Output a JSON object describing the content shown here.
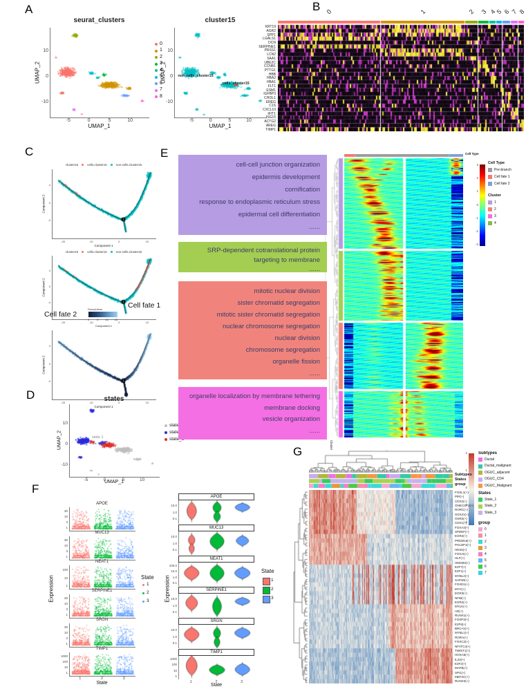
{
  "colors": {
    "gg9": [
      "#F8766D",
      "#D39200",
      "#93AA00",
      "#00BA38",
      "#00C19F",
      "#00B9E3",
      "#619CFF",
      "#DB72FB",
      "#FF61C3"
    ],
    "teal": "#00BFC4",
    "red": "#F8766D",
    "dark_red_cells": "#C65B53"
  },
  "panel_a": {
    "letter": "A",
    "plot1": {
      "title": "seurat_clusters",
      "xlabel": "UMAP_1",
      "ylabel": "UMAP_2",
      "xticks": [
        "-5",
        "0",
        "5",
        "10"
      ],
      "yticks": [
        "10",
        "0",
        "-10"
      ]
    },
    "legend": {
      "items": [
        {
          "label": "0",
          "color": "#F8766D"
        },
        {
          "label": "1",
          "color": "#D39200"
        },
        {
          "label": "2",
          "color": "#93AA00"
        },
        {
          "label": "3",
          "color": "#00BA38"
        },
        {
          "label": "4",
          "color": "#00C19F"
        },
        {
          "label": "5",
          "color": "#00B9E3"
        },
        {
          "label": "6",
          "color": "#619CFF"
        },
        {
          "label": "7",
          "color": "#DB72FB"
        },
        {
          "label": "8",
          "color": "#FF61C3"
        }
      ]
    },
    "plot2": {
      "title": "cluster15",
      "xlabel": "UMAP_1",
      "ylabel": "UMAP_2",
      "xticks": [
        "-5",
        "0",
        "5",
        "10"
      ],
      "yticks": [
        "10",
        "0",
        "-10"
      ],
      "annotations": [
        "non-cells_cluster15",
        "cells_cluster15"
      ]
    }
  },
  "panel_b": {
    "letter": "B",
    "cluster_labels": [
      "0",
      "1",
      "2",
      "3",
      "4",
      "5",
      "6",
      "7",
      "8"
    ],
    "genes": [
      "KRT19",
      "AGR2",
      "SPP1",
      "LGALS1",
      "DCN",
      "SERPINE1",
      "PRSS1",
      "LCN2",
      "SAA1",
      "UBE2C",
      "CCNB1",
      "PTTG1",
      "HBB",
      "HBA2",
      "HBA1",
      "FLT1",
      "ESM1",
      "IGFBP3",
      "CHI3L1",
      "EREG",
      "C1S",
      "CXCL10",
      "IFIT1",
      "ISG15",
      "ACTG2",
      "AREG",
      "TIMP1"
    ]
  },
  "panel_c": {
    "letter": "C",
    "legend": {
      "title": "cluster15",
      "items": [
        {
          "label": "cells.cluster15",
          "color": "#F8766D"
        },
        {
          "label": "non-cells.cluster15",
          "color": "#00BFC4"
        }
      ]
    },
    "xlabel": "Component 1",
    "ylabel": "Component 2",
    "xticks": [
      "-20",
      "-10",
      "0",
      "10"
    ],
    "yticks": [
      "4",
      "0",
      "-4"
    ],
    "branch_label": "1",
    "cell_fate_1": "Cell fate 1",
    "cell_fate_2": "Cell fate 2",
    "pseudotime": {
      "label": "Pseudotime",
      "ticks": [
        "0",
        "5",
        "10",
        "15"
      ]
    }
  },
  "panel_d": {
    "letter": "D",
    "title": "states",
    "xlabel": "UMAP_1",
    "ylabel": "UMAP_2",
    "xticks": [
      "-5",
      "0",
      "5",
      "10"
    ],
    "yticks": [
      "10",
      "0",
      "-10"
    ],
    "legend": [
      {
        "label": "state_1",
        "color": "#BEBEBE"
      },
      {
        "label": "state_2",
        "color": "#2B2BDB"
      },
      {
        "label": "state_3",
        "color": "#DE2D26"
      }
    ],
    "inplot_label": "state 1"
  },
  "panel_e": {
    "letter": "E",
    "go_boxes": [
      {
        "color": "#B69CE3",
        "terms": [
          "cell-cell junction organization",
          "epidermis development",
          "cornification",
          "response to endoplasmic reticulum stress",
          "epidermal cell differentiation",
          "......"
        ]
      },
      {
        "color": "#A3CE52",
        "terms": [
          "SRP-dependent cotranslational protein targeting to membrane",
          "......"
        ]
      },
      {
        "color": "#F0847C",
        "terms": [
          "mitotic nuclear division",
          "sister chromatid segregation",
          "mitotic sister chromatid segregation",
          "nuclear chromosome segregation",
          "nuclear division",
          "chromosome segregation",
          "organelle fission",
          "......"
        ]
      },
      {
        "color": "#F46FE3",
        "terms": [
          "organelle localization by membrane tethering",
          "membrane docking",
          "vesicle organization",
          "......"
        ]
      }
    ],
    "top_label": "Cell Type",
    "legend_celltype": {
      "title": "Cell Type",
      "items": [
        {
          "label": "Pre-branch",
          "color": "#9C9C9C"
        },
        {
          "label": "Cell fate 1",
          "color": "#F8766D"
        },
        {
          "label": "Cell fate 2",
          "color": "#7F9FD8"
        }
      ]
    },
    "legend_cluster": {
      "title": "Cluster",
      "items": [
        {
          "label": "1",
          "color": "#B69CE3"
        },
        {
          "label": "2",
          "color": "#F0847C"
        },
        {
          "label": "3",
          "color": "#F46FE3"
        },
        {
          "label": "4",
          "color": "#7CC243"
        }
      ]
    },
    "colorbar_ticks": [
      "3",
      "2",
      "1",
      "0",
      "-1",
      "-2",
      "-3"
    ],
    "row_axis_label": "Cluster"
  },
  "panel_f": {
    "letter": "F",
    "xlabel": "State",
    "ylabel": "Expression",
    "xticks": [
      "1",
      "2",
      "3"
    ],
    "legend": {
      "title": "State",
      "items": [
        {
          "label": "1",
          "color": "#F8766D"
        },
        {
          "label": "2",
          "color": "#00BA38"
        },
        {
          "label": "3",
          "color": "#619CFF"
        }
      ]
    },
    "scatter_facets": [
      {
        "gene": "APOE",
        "yticks": [
          "30",
          "10",
          "3",
          "1"
        ]
      },
      {
        "gene": "MUC13",
        "yticks": [
          "30",
          "10",
          "3",
          "1"
        ]
      },
      {
        "gene": "NEAT1",
        "yticks": [
          "100",
          "10",
          "1"
        ]
      },
      {
        "gene": "SERPINE1",
        "yticks": [
          "30",
          "10",
          "3",
          "1"
        ]
      },
      {
        "gene": "SRGN",
        "yticks": [
          "30",
          "10",
          "3",
          "1"
        ]
      },
      {
        "gene": "TIMP1",
        "yticks": [
          "1000",
          "100",
          "10",
          "1"
        ]
      }
    ],
    "violin_facets": [
      {
        "gene": "APOE",
        "yticks": [
          "10.0",
          "1.0",
          "0.1"
        ]
      },
      {
        "gene": "MUC13",
        "yticks": [
          "10.0",
          "1.0",
          "0.1"
        ]
      },
      {
        "gene": "NEAT1",
        "yticks": [
          "100.0",
          "10.0",
          "1.0",
          "0.1"
        ]
      },
      {
        "gene": "SERPINE1",
        "yticks": [
          "10.0",
          "1.0",
          "0.1"
        ]
      },
      {
        "gene": "SRGN",
        "yticks": [
          "10.0",
          "1.0",
          "0.1"
        ]
      },
      {
        "gene": "TIMP1",
        "yticks": [
          "1000",
          "100",
          "10",
          "1"
        ]
      }
    ]
  },
  "panel_g": {
    "letter": "G",
    "ann_labels": [
      "Subtypes",
      "States",
      "group"
    ],
    "row_labels": [
      "FOSL1(+)",
      "PIR(+)",
      "CDX2(+)",
      "ONECUT2(+)",
      "RORC(+)",
      "SOX21(+)",
      "OSR2(+)",
      "CDX1(+)",
      "FOXA3(+)",
      "SPDEF(+)",
      "EGR2(+)",
      "PRDM16(+)",
      "POU2F3(+)",
      "HES6(+)",
      "FOXJ1(+)",
      "HLF(+)",
      "HMGB2(+)",
      "E2F7(+)",
      "E2F1(+)",
      "MYBL2(+)",
      "SAP30(+)",
      "FOXD1(+)",
      "MYC(+)",
      "EGR3(+)",
      "NFIB(+)",
      "EGR4(+)",
      "MYLK(+)",
      "AR(+)",
      "RUNX1(+)",
      "FOXP3(+)",
      "E2F8(+)",
      "BRCA1(+)",
      "MYBL1(+)",
      "RORA(+)",
      "FOXC2(+)",
      "NFATC4(+)",
      "TWIST1(+)",
      "HOXA5(+)",
      "IL24(+)",
      "E2F2(+)",
      "MAFB(+)",
      "SPI1(+)",
      "MEF2C(+)",
      "RUNX3(+)"
    ],
    "colorbar_ticks": [
      "2",
      "1",
      "0",
      "-1",
      "-2"
    ],
    "legend_subtypes": {
      "title": "Subtypes",
      "items": [
        {
          "label": "Ductal",
          "color": "#F06EE8"
        },
        {
          "label": "Ductal_malignant",
          "color": "#35C9A8"
        },
        {
          "label": "OGUC_adjacent",
          "color": "#B3B53E"
        },
        {
          "label": "OGUC_CD4",
          "color": "#CBA9F2"
        },
        {
          "label": "OGUC_Malignant",
          "color": "#F79646"
        }
      ]
    },
    "legend_states": {
      "title": "States",
      "items": [
        {
          "label": "State_1",
          "color": "#37CB5C"
        },
        {
          "label": "State_2",
          "color": "#A8D34C"
        },
        {
          "label": "State_3",
          "color": "#C4B3EE"
        }
      ]
    },
    "legend_group": {
      "title": "group",
      "items": [
        {
          "label": "0",
          "color": "#F7A6CE"
        },
        {
          "label": "1",
          "color": "#F58EA8"
        },
        {
          "label": "2",
          "color": "#3ED8D8"
        },
        {
          "label": "3",
          "color": "#E09A40"
        },
        {
          "label": "4",
          "color": "#F77FBE"
        },
        {
          "label": "5",
          "color": "#64B8F0"
        },
        {
          "label": "6",
          "color": "#4CC94C"
        },
        {
          "label": "7",
          "color": "#38D3E8"
        }
      ]
    }
  },
  "chart_data": [
    {
      "type": "scatter",
      "panel": "A",
      "title": "seurat_clusters",
      "xlabel": "UMAP_1",
      "ylabel": "UMAP_2",
      "xlim": [
        -9.5,
        14.5
      ],
      "ylim": [
        -16,
        19
      ],
      "clusters": [
        {
          "id": "0",
          "color": "#F8766D",
          "center": [
            -5.5,
            1.8
          ],
          "n": 460
        },
        {
          "id": "1",
          "color": "#D39200",
          "center": [
            4.8,
            -3.2
          ],
          "n": 420
        },
        {
          "id": "2",
          "color": "#93AA00",
          "center": [
            -3.6,
            16.2
          ],
          "n": 60
        },
        {
          "id": "3",
          "color": "#00BA38",
          "center": [
            3.4,
            0.8
          ],
          "n": 30
        },
        {
          "id": "4",
          "color": "#00C19F",
          "center": [
            1.8,
            -0.3
          ],
          "n": 25
        },
        {
          "id": "5",
          "color": "#00B9E3",
          "center": [
            0.3,
            1.5
          ],
          "n": 30
        },
        {
          "id": "6",
          "color": "#619CFF",
          "center": [
            8.6,
            -7.3
          ],
          "n": 45
        },
        {
          "id": "7",
          "color": "#DB72FB",
          "center": [
            -3.9,
            -12.7
          ],
          "n": 14
        },
        {
          "id": "8",
          "color": "#FF61C3",
          "center": [
            12.6,
            -9.3
          ],
          "n": 12
        }
      ]
    },
    {
      "type": "scatter",
      "panel": "A",
      "title": "cluster15",
      "groups": [
        {
          "label": "non-cells_cluster15",
          "color": "#00BFC4"
        },
        {
          "label": "cells_cluster15",
          "color": "#C65B53",
          "center": [
            6.3,
            -3.2
          ]
        }
      ]
    },
    {
      "type": "heatmap",
      "panel": "B",
      "palette": "purple-black-yellow",
      "columns": "cells grouped by cluster",
      "cluster_labels": [
        "0",
        "1",
        "2",
        "3",
        "4",
        "5",
        "6",
        "7",
        "8"
      ],
      "cluster_width_fracs": [
        0.42,
        0.345,
        0.05,
        0.042,
        0.026,
        0.022,
        0.03,
        0.028,
        0.027
      ],
      "rows": [
        "KRT19",
        "AGR2",
        "SPP1",
        "LGALS1",
        "DCN",
        "SERPINE1",
        "PRSS1",
        "LCN2",
        "SAA1",
        "UBE2C",
        "CCNB1",
        "PTTG1",
        "HBB",
        "HBA2",
        "HBA1",
        "FLT1",
        "ESM1",
        "IGFBP3",
        "CHI3L1",
        "EREG",
        "C1S",
        "CXCL10",
        "IFIT1",
        "ISG15",
        "ACTG2",
        "AREG",
        "TIMP1"
      ],
      "marker_cluster_of_row": [
        [
          0,
          1
        ],
        [
          1
        ],
        [
          0,
          1
        ],
        [
          0
        ],
        [
          2
        ],
        [
          0
        ],
        [
          1
        ],
        [
          1
        ],
        [
          2
        ],
        [
          3
        ],
        [
          3
        ],
        [
          3
        ],
        [
          4
        ],
        [
          4
        ],
        [
          4
        ],
        [
          5
        ],
        [
          5
        ],
        [
          6
        ],
        [
          6
        ],
        [
          6
        ],
        [
          6
        ],
        [
          7
        ],
        [
          7
        ],
        [
          7
        ],
        [
          8
        ],
        [
          8
        ],
        [
          0,
          1,
          2
        ]
      ]
    },
    {
      "type": "scatter",
      "panel": "C",
      "subtype": "trajectory",
      "xlabel": "Component 1",
      "ylabel": "Component 2",
      "plots": [
        {
          "color_by": "cluster15",
          "branch_point": "1"
        },
        {
          "color_by": "cluster15",
          "annotation": "Cell fate 1"
        },
        {
          "color_by": "Pseudotime",
          "scale_ticks": [
            0,
            5,
            10,
            15
          ],
          "annotation": "Cell fate 2"
        }
      ]
    },
    {
      "type": "scatter",
      "panel": "D",
      "title": "states",
      "states": [
        {
          "label": "state_1",
          "color": "#BEBEBE",
          "region": "right"
        },
        {
          "label": "state_2",
          "color": "#2B2BDB",
          "region": "left"
        },
        {
          "label": "state_3",
          "color": "#DE2D26",
          "region": "center"
        }
      ]
    },
    {
      "type": "heatmap",
      "panel": "E",
      "palette": "jet",
      "zlim": [
        -3,
        3
      ],
      "col_split": [
        "Cell fate 1 branch",
        "Cell fate 2 branch"
      ],
      "row_blocks": [
        {
          "cluster": "1",
          "color": "#B69CE3",
          "go_terms": [
            "cell-cell junction organization",
            "epidermis development",
            "cornification",
            "response to endoplasmic reticulum stress",
            "epidermal cell differentiation"
          ]
        },
        {
          "cluster": "4",
          "color": "#7CC243",
          "go_terms": [
            "SRP-dependent cotranslational protein targeting to membrane"
          ]
        },
        {
          "cluster": "2",
          "color": "#F0847C",
          "go_terms": [
            "mitotic nuclear division",
            "sister chromatid segregation",
            "mitotic sister chromatid segregation",
            "nuclear chromosome segregation",
            "nuclear division",
            "chromosome segregation",
            "organelle fission"
          ]
        },
        {
          "cluster": "3",
          "color": "#F46FE3",
          "go_terms": [
            "organelle localization by membrane tethering",
            "membrane docking",
            "vesicle organization"
          ]
        }
      ]
    },
    {
      "type": "violin",
      "panel": "F",
      "genes": [
        "APOE",
        "MUC13",
        "NEAT1",
        "SERPINE1",
        "SRGN",
        "TIMP1"
      ],
      "x": "State",
      "states": [
        "1",
        "2",
        "3"
      ],
      "ylabel": "Expression",
      "yscale": "log",
      "approx_median_expression": {
        "APOE": [
          2,
          1.5,
          3
        ],
        "MUC13": [
          1,
          3,
          3
        ],
        "NEAT1": [
          8,
          10,
          8
        ],
        "SERPINE1": [
          3,
          1.5,
          2
        ],
        "SRGN": [
          4,
          2,
          5
        ],
        "TIMP1": [
          20,
          8,
          10
        ]
      }
    },
    {
      "type": "heatmap",
      "panel": "G",
      "palette": "RdBu",
      "zlim": [
        -2,
        2
      ],
      "rows": [
        "FOSL1(+)",
        "PIR(+)",
        "CDX2(+)",
        "ONECUT2(+)",
        "RORC(+)",
        "SOX21(+)",
        "OSR2(+)",
        "CDX1(+)",
        "FOXA3(+)",
        "SPDEF(+)",
        "EGR2(+)",
        "PRDM16(+)",
        "POU2F3(+)",
        "HES6(+)",
        "FOXJ1(+)",
        "HLF(+)",
        "HMGB2(+)",
        "E2F7(+)",
        "E2F1(+)",
        "MYBL2(+)",
        "SAP30(+)",
        "FOXD1(+)",
        "MYC(+)",
        "EGR3(+)",
        "NFIB(+)",
        "EGR4(+)",
        "MYLK(+)",
        "AR(+)",
        "RUNX1(+)",
        "FOXP3(+)",
        "E2F8(+)",
        "BRCA1(+)",
        "MYBL1(+)",
        "RORA(+)",
        "FOXC2(+)",
        "NFATC4(+)",
        "TWIST1(+)",
        "HOXA5(+)",
        "IL24(+)",
        "E2F2(+)",
        "MAFB(+)",
        "SPI1(+)",
        "MEF2C(+)",
        "RUNX3(+)"
      ],
      "column_annotations": [
        "Subtypes",
        "States",
        "group"
      ]
    }
  ]
}
